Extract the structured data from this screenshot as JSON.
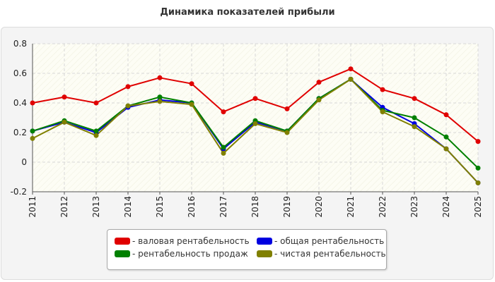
{
  "chart_data": {
    "type": "line",
    "title": "Динамика показателей прибыли",
    "x": [
      "2011",
      "2012",
      "2013",
      "2014",
      "2015",
      "2016",
      "2017",
      "2018",
      "2019",
      "2020",
      "2021",
      "2022",
      "2023",
      "2024",
      "2025"
    ],
    "y_ticks": [
      "0.8",
      "0.6",
      "0.4",
      "0.2",
      "0",
      "-0.2"
    ],
    "ylim": [
      -0.2,
      0.8
    ],
    "grid": true,
    "legend_position": "bottom",
    "series": [
      {
        "name": "- валовая рентабельность",
        "color": "#e00000",
        "values": [
          0.4,
          0.44,
          0.4,
          0.51,
          0.57,
          0.53,
          0.34,
          0.43,
          0.36,
          0.54,
          0.63,
          0.49,
          0.43,
          0.32,
          0.14
        ]
      },
      {
        "name": "- общая рентабельность",
        "color": "#0000e0",
        "values": [
          0.21,
          0.27,
          0.2,
          0.37,
          0.42,
          0.4,
          0.09,
          0.27,
          0.21,
          0.43,
          0.56,
          0.37,
          0.26,
          0.09,
          -0.14
        ]
      },
      {
        "name": "- рентабельность продаж",
        "color": "#008000",
        "values": [
          0.21,
          0.28,
          0.21,
          0.38,
          0.44,
          0.4,
          0.1,
          0.28,
          0.21,
          0.43,
          0.56,
          0.35,
          0.3,
          0.17,
          -0.04
        ]
      },
      {
        "name": "- чистая рентабельность",
        "color": "#808000",
        "values": [
          0.16,
          0.27,
          0.18,
          0.38,
          0.41,
          0.39,
          0.06,
          0.26,
          0.2,
          0.42,
          0.56,
          0.34,
          0.24,
          0.09,
          -0.14
        ]
      }
    ]
  }
}
